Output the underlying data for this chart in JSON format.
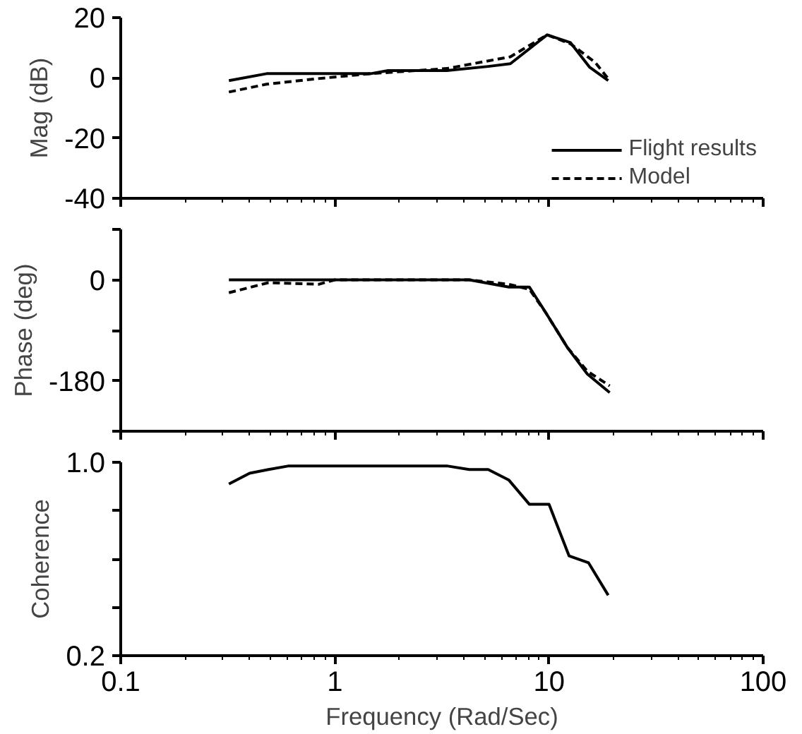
{
  "chart_data": [
    {
      "type": "line",
      "ylabel": "Mag (dB)",
      "log": "x",
      "grid": false,
      "legend": "bottom right",
      "tick_labels": "y",
      "xlim": [
        0.1,
        100
      ],
      "xticks": [
        0.1,
        1,
        10,
        100
      ],
      "ylim": [
        -40,
        20
      ],
      "yticks": [
        -40,
        -20,
        0,
        20
      ],
      "series": [
        {
          "name": "Flight results",
          "color": "#000000",
          "line_style": "solid",
          "x": [
            0.32,
            0.48,
            1.47,
            1.77,
            3.33,
            5.2,
            6.6,
            9.8,
            12.6,
            15.5,
            18.9
          ],
          "values": [
            -0.9,
            1.4,
            1.4,
            2.4,
            2.4,
            3.8,
            4.7,
            14.3,
            11.7,
            3.5,
            -0.9
          ]
        },
        {
          "name": "Model",
          "color": "#000000",
          "line_style": "dashed",
          "x": [
            0.32,
            0.48,
            0.82,
            1.47,
            3.33,
            6.6,
            9.8,
            12.6,
            16.4,
            18.9
          ],
          "values": [
            -4.7,
            -2.1,
            -0.3,
            1.4,
            3.1,
            7,
            14.3,
            11.3,
            5.2,
            -0.3
          ]
        }
      ]
    },
    {
      "type": "line",
      "ylabel": "Phase (deg)",
      "log": "x",
      "grid": false,
      "legend": false,
      "tick_labels": "y",
      "xlim": [
        0.1,
        100
      ],
      "xticks": [
        0.1,
        1,
        10,
        100
      ],
      "ylim": [
        -270,
        90
      ],
      "yticks": [
        {
          "value": -270,
          "label": null
        },
        -180,
        {
          "value": -90,
          "label": null
        },
        0,
        {
          "value": 90,
          "label": null
        }
      ],
      "series": [
        {
          "color": "#000000",
          "line_style": "solid",
          "x": [
            0.32,
            4.24,
            6.5,
            8.1,
            9.6,
            12.2,
            15.1,
            19.2
          ],
          "values": [
            0,
            0,
            -13,
            -13,
            -57,
            -121,
            -168,
            -201
          ]
        },
        {
          "color": "#000000",
          "line_style": "dashed",
          "x": [
            0.32,
            0.49,
            0.84,
            1.0,
            4.24,
            6.5,
            8.1,
            9.6,
            12.2,
            15.1,
            19.2
          ],
          "values": [
            -23,
            -5,
            -8,
            0,
            0,
            -8,
            -17,
            -57,
            -121,
            -163,
            -189
          ]
        }
      ]
    },
    {
      "type": "line",
      "ylabel": "Coherence",
      "xlabel": "Frequency (Rad/Sec)",
      "log": "x",
      "grid": false,
      "legend": false,
      "xlim": [
        0.1,
        100
      ],
      "xticks": [
        0.1,
        1,
        10,
        100
      ],
      "ylim": [
        0.2,
        1.0
      ],
      "yticks": [
        0.2,
        {
          "value": 0.4,
          "label": null
        },
        {
          "value": 0.6,
          "label": null
        },
        {
          "value": 0.8,
          "label": null
        },
        {
          "value": 1.0,
          "label": "1.0"
        }
      ],
      "series": [
        {
          "color": "#000000",
          "line_style": "solid",
          "x": [
            0.32,
            0.4,
            0.49,
            0.61,
            3.33,
            4.24,
            5.2,
            6.5,
            8.1,
            10,
            12.4,
            15.3,
            18.9
          ],
          "values": [
            0.91,
            0.955,
            0.97,
            0.985,
            0.985,
            0.97,
            0.97,
            0.926,
            0.826,
            0.826,
            0.613,
            0.584,
            0.45
          ]
        }
      ]
    }
  ]
}
